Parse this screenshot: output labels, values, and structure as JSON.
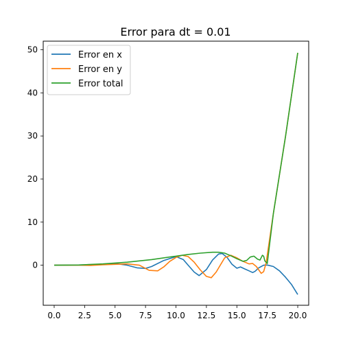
{
  "chart_data": {
    "type": "line",
    "title": "Error para dt = 0.01",
    "xlabel": "",
    "ylabel": "",
    "xlim": [
      -0.9,
      20.9
    ],
    "ylim": [
      -9.3,
      52.0
    ],
    "xticks": [
      0.0,
      2.5,
      5.0,
      7.5,
      10.0,
      12.5,
      15.0,
      17.5,
      20.0
    ],
    "xtick_labels": [
      "0.0",
      "2.5",
      "5.0",
      "7.5",
      "10.0",
      "12.5",
      "15.0",
      "17.5",
      "20.0"
    ],
    "yticks": [
      0,
      10,
      20,
      30,
      40,
      50
    ],
    "ytick_labels": [
      "0",
      "10",
      "20",
      "30",
      "40",
      "50"
    ],
    "grid": false,
    "legend_position": "top-left",
    "series": [
      {
        "name": "Error en x",
        "color": "#1f77b4",
        "x": [
          0,
          2,
          4,
          5,
          6,
          6.8,
          7.5,
          8,
          9,
          10,
          10.6,
          11,
          11.5,
          11.9,
          12.5,
          13,
          13.5,
          13.8,
          14.2,
          14.6,
          15,
          15.3,
          15.6,
          16,
          16.3,
          16.5,
          16.8,
          17,
          17.2,
          17.5,
          18,
          18.5,
          19,
          19.5,
          20
        ],
        "y": [
          0,
          0.05,
          0.2,
          0.4,
          0.0,
          -0.6,
          -0.75,
          -0.3,
          1.1,
          2.0,
          1.3,
          0.0,
          -1.6,
          -2.4,
          -1.0,
          1.2,
          2.6,
          2.7,
          1.8,
          0.2,
          -0.7,
          -0.4,
          -0.8,
          -1.3,
          -1.7,
          -1.4,
          -0.6,
          -0.3,
          0.0,
          0.05,
          -0.3,
          -1.3,
          -2.8,
          -4.5,
          -6.8
        ]
      },
      {
        "name": "Error en y",
        "color": "#ff7f0e",
        "x": [
          0,
          2,
          3,
          4,
          5,
          6,
          7,
          7.8,
          8.5,
          9,
          9.5,
          10,
          10.5,
          11,
          11.5,
          12,
          12.5,
          12.9,
          13.3,
          13.7,
          14,
          14.5,
          15,
          15.5,
          16,
          16.3,
          16.6,
          17,
          17.2,
          17.4,
          18,
          19,
          20
        ],
        "y": [
          0,
          0.0,
          -0.05,
          0.1,
          0.2,
          0.3,
          0.0,
          -1.2,
          -1.3,
          -0.4,
          0.9,
          1.8,
          2.3,
          2.0,
          0.7,
          -1.1,
          -2.6,
          -2.9,
          -1.6,
          0.3,
          1.7,
          2.3,
          1.7,
          0.9,
          0.3,
          0.4,
          -0.3,
          -1.9,
          -1.5,
          0.5,
          12,
          30,
          49.3
        ]
      },
      {
        "name": "Error total",
        "color": "#2ca02c",
        "x": [
          0,
          2,
          4,
          6,
          8,
          10,
          11,
          12,
          13,
          13.5,
          14,
          14.5,
          15,
          15.5,
          15.8,
          16.1,
          16.4,
          16.7,
          16.9,
          17.1,
          17.2,
          17.3,
          17.5,
          18,
          19,
          20
        ],
        "y": [
          0,
          0.05,
          0.3,
          0.7,
          1.3,
          2.1,
          2.5,
          2.8,
          3.0,
          3.0,
          2.8,
          2.2,
          1.5,
          0.9,
          1.1,
          1.9,
          2.1,
          1.4,
          1.2,
          2.3,
          2.1,
          1.0,
          0.4,
          12,
          30,
          49.3
        ]
      }
    ]
  }
}
